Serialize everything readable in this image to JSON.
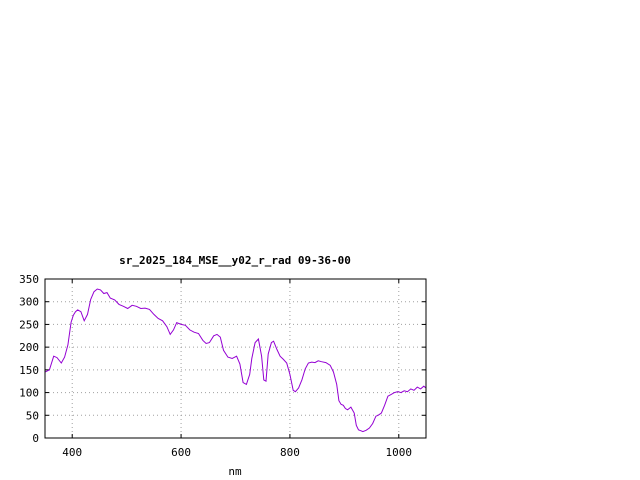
{
  "chart_data": {
    "type": "line",
    "title": "sr_2025_184_MSE__y02_r_rad 09-36-00",
    "xlabel": "nm",
    "ylabel": "",
    "xlim": [
      350,
      1050
    ],
    "ylim": [
      0,
      350
    ],
    "xticks": [
      400,
      600,
      800,
      1000
    ],
    "yticks": [
      0,
      50,
      100,
      150,
      200,
      250,
      300,
      350
    ],
    "grid": true,
    "legend": "none",
    "line_color": "#9400d3",
    "series": [
      {
        "x": [
          350,
          358,
          366,
          372,
          380,
          386,
          392,
          398,
          402,
          406,
          410,
          416,
          422,
          428,
          434,
          440,
          446,
          452,
          458,
          464,
          470,
          478,
          486,
          494,
          502,
          510,
          518,
          526,
          534,
          542,
          550,
          558,
          566,
          574,
          580,
          586,
          592,
          600,
          608,
          616,
          624,
          632,
          640,
          646,
          652,
          660,
          666,
          672,
          678,
          686,
          694,
          702,
          708,
          714,
          720,
          726,
          730,
          736,
          742,
          748,
          752,
          756,
          760,
          766,
          770,
          776,
          782,
          788,
          794,
          800,
          806,
          810,
          816,
          822,
          828,
          834,
          840,
          846,
          852,
          858,
          866,
          874,
          880,
          886,
          890,
          894,
          898,
          902,
          906,
          912,
          918,
          922,
          926,
          930,
          934,
          940,
          946,
          952,
          958,
          962,
          968,
          974,
          980,
          986,
          992,
          998,
          1004,
          1010,
          1016,
          1022,
          1028,
          1034,
          1040,
          1046,
          1050
        ],
        "values": [
          145,
          150,
          180,
          177,
          165,
          178,
          205,
          255,
          270,
          278,
          282,
          278,
          258,
          272,
          305,
          322,
          328,
          326,
          318,
          320,
          308,
          304,
          294,
          290,
          285,
          292,
          290,
          285,
          286,
          283,
          272,
          263,
          258,
          245,
          228,
          238,
          254,
          250,
          248,
          238,
          233,
          230,
          215,
          208,
          210,
          225,
          228,
          222,
          193,
          178,
          175,
          180,
          163,
          122,
          118,
          140,
          175,
          210,
          218,
          180,
          128,
          125,
          185,
          210,
          213,
          195,
          180,
          173,
          165,
          140,
          105,
          102,
          110,
          128,
          152,
          165,
          167,
          166,
          170,
          168,
          166,
          160,
          145,
          118,
          82,
          74,
          72,
          65,
          62,
          68,
          55,
          28,
          18,
          16,
          14,
          17,
          22,
          32,
          48,
          50,
          55,
          72,
          92,
          96,
          100,
          102,
          100,
          104,
          102,
          108,
          105,
          112,
          108,
          114,
          110
        ]
      }
    ]
  }
}
